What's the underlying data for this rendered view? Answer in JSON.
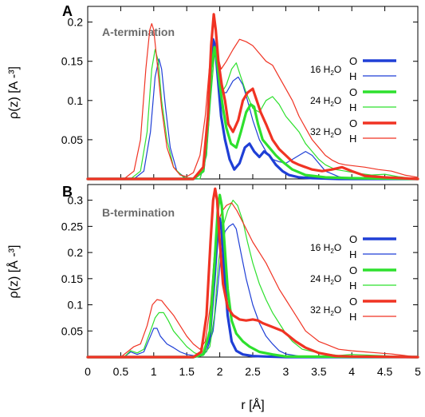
{
  "x_axis": {
    "label": "r [Å]",
    "ticks": [
      "0",
      "0.5",
      "1",
      "1.5",
      "2",
      "2.5",
      "3",
      "3.5",
      "4",
      "4.5",
      "5"
    ]
  },
  "colors": {
    "blue": "#1f3fd6",
    "green": "#2ee02e",
    "red": "#f03323"
  },
  "chart_data": [
    {
      "type": "line",
      "panel_letter": "A",
      "title": "A-termination",
      "ylabel": "ρ(z) [A -³]",
      "xlim": [
        0,
        5
      ],
      "ylim": [
        0,
        0.22
      ],
      "yticks": [
        "0.05",
        "0.1",
        "0.15",
        "0.2"
      ],
      "legend": [
        {
          "label_pre": "16 H",
          "label_sub": "2",
          "label_post": "O",
          "color": "blue"
        },
        {
          "label_pre": "24 H",
          "label_sub": "2",
          "label_post": "O",
          "color": "green"
        },
        {
          "label_pre": "32 H",
          "label_sub": "2",
          "label_post": "O",
          "color": "red"
        }
      ],
      "legend_markers": [
        "O",
        "H"
      ],
      "series": [
        {
          "group": "16 H2O",
          "atom": "O",
          "color": "blue",
          "width": 3.2,
          "x": [
            0,
            1.6,
            1.75,
            1.82,
            1.87,
            1.9,
            1.93,
            1.97,
            2.02,
            2.08,
            2.15,
            2.22,
            2.3,
            2.38,
            2.45,
            2.52,
            2.6,
            2.67,
            2.75,
            2.85,
            2.95,
            3.05,
            3.2,
            3.4,
            3.8,
            5
          ],
          "y": [
            0,
            0,
            0.01,
            0.07,
            0.14,
            0.178,
            0.17,
            0.13,
            0.08,
            0.05,
            0.025,
            0.012,
            0.02,
            0.04,
            0.045,
            0.035,
            0.028,
            0.035,
            0.03,
            0.018,
            0.01,
            0.005,
            0.002,
            0.001,
            0,
            0
          ]
        },
        {
          "group": "16 H2O",
          "atom": "H",
          "color": "blue",
          "width": 1.2,
          "x": [
            0,
            0.7,
            0.85,
            0.95,
            1.02,
            1.08,
            1.12,
            1.18,
            1.25,
            1.35,
            1.5,
            1.7,
            1.8,
            1.85,
            1.9,
            1.95,
            2.02,
            2.1,
            2.2,
            2.28,
            2.35,
            2.42,
            2.5,
            2.6,
            2.7,
            2.8,
            2.9,
            3.0,
            3.1,
            3.2,
            3.3,
            3.4,
            3.5,
            3.6,
            3.8,
            4.0,
            5
          ],
          "y": [
            0,
            0,
            0.01,
            0.06,
            0.13,
            0.153,
            0.14,
            0.09,
            0.04,
            0.01,
            0,
            0,
            0.03,
            0.1,
            0.175,
            0.16,
            0.11,
            0.11,
            0.125,
            0.13,
            0.12,
            0.1,
            0.075,
            0.05,
            0.035,
            0.025,
            0.022,
            0.02,
            0.025,
            0.03,
            0.035,
            0.03,
            0.02,
            0.01,
            0.003,
            0,
            0
          ]
        },
        {
          "group": "24 H2O",
          "atom": "O",
          "color": "green",
          "width": 3.2,
          "x": [
            0,
            1.6,
            1.75,
            1.82,
            1.87,
            1.92,
            1.96,
            2.0,
            2.05,
            2.1,
            2.17,
            2.25,
            2.32,
            2.4,
            2.47,
            2.52,
            2.58,
            2.65,
            2.75,
            2.85,
            2.95,
            3.1,
            3.3,
            3.6,
            4.0,
            5
          ],
          "y": [
            0,
            0,
            0.01,
            0.07,
            0.14,
            0.168,
            0.15,
            0.12,
            0.09,
            0.065,
            0.045,
            0.04,
            0.06,
            0.085,
            0.095,
            0.092,
            0.07,
            0.05,
            0.04,
            0.03,
            0.022,
            0.012,
            0.005,
            0.002,
            0.001,
            0
          ]
        },
        {
          "group": "24 H2O",
          "atom": "H",
          "color": "green",
          "width": 1.2,
          "x": [
            0,
            0.65,
            0.8,
            0.9,
            0.97,
            1.02,
            1.07,
            1.12,
            1.2,
            1.3,
            1.45,
            1.7,
            1.8,
            1.86,
            1.92,
            1.97,
            2.03,
            2.1,
            2.18,
            2.25,
            2.32,
            2.4,
            2.5,
            2.6,
            2.7,
            2.8,
            2.9,
            3.0,
            3.1,
            3.2,
            3.3,
            3.4,
            3.5,
            3.6,
            3.75,
            3.9,
            4.1,
            4.3,
            4.5,
            4.7,
            5
          ],
          "y": [
            0,
            0,
            0.01,
            0.06,
            0.14,
            0.165,
            0.15,
            0.1,
            0.05,
            0.015,
            0.002,
            0,
            0.03,
            0.1,
            0.16,
            0.14,
            0.11,
            0.12,
            0.14,
            0.148,
            0.13,
            0.11,
            0.09,
            0.085,
            0.1,
            0.105,
            0.095,
            0.08,
            0.07,
            0.06,
            0.045,
            0.035,
            0.025,
            0.018,
            0.012,
            0.01,
            0.007,
            0.005,
            0.006,
            0.003,
            0
          ]
        },
        {
          "group": "32 H2O",
          "atom": "O",
          "color": "red",
          "width": 3.2,
          "x": [
            0,
            1.6,
            1.75,
            1.82,
            1.87,
            1.91,
            1.94,
            1.98,
            2.03,
            2.08,
            2.13,
            2.2,
            2.28,
            2.35,
            2.42,
            2.5,
            2.56,
            2.62,
            2.7,
            2.8,
            2.9,
            3.0,
            3.1,
            3.2,
            3.3,
            3.4,
            3.55,
            3.7,
            3.85,
            4.0,
            4.2,
            4.5,
            5
          ],
          "y": [
            0,
            0,
            0.015,
            0.08,
            0.17,
            0.21,
            0.19,
            0.15,
            0.12,
            0.1,
            0.07,
            0.06,
            0.075,
            0.1,
            0.11,
            0.115,
            0.1,
            0.085,
            0.07,
            0.05,
            0.038,
            0.03,
            0.022,
            0.018,
            0.015,
            0.012,
            0.01,
            0.012,
            0.015,
            0.01,
            0.004,
            0.002,
            0
          ]
        },
        {
          "group": "32 H2O",
          "atom": "H",
          "color": "red",
          "width": 1.2,
          "x": [
            0,
            0.55,
            0.7,
            0.8,
            0.88,
            0.94,
            0.97,
            1.0,
            1.05,
            1.12,
            1.2,
            1.3,
            1.4,
            1.5,
            1.6,
            1.7,
            1.78,
            1.84,
            1.9,
            1.96,
            2.02,
            2.1,
            2.2,
            2.3,
            2.4,
            2.5,
            2.6,
            2.7,
            2.8,
            2.9,
            3.0,
            3.1,
            3.2,
            3.3,
            3.4,
            3.5,
            3.6,
            3.7,
            3.8,
            3.9,
            4.0,
            4.2,
            4.4,
            4.6,
            4.8,
            5
          ],
          "y": [
            0,
            0,
            0.01,
            0.05,
            0.14,
            0.19,
            0.198,
            0.19,
            0.15,
            0.09,
            0.04,
            0.015,
            0.005,
            0.003,
            0.008,
            0.03,
            0.08,
            0.14,
            0.17,
            0.16,
            0.14,
            0.15,
            0.165,
            0.178,
            0.175,
            0.17,
            0.16,
            0.15,
            0.145,
            0.13,
            0.115,
            0.1,
            0.08,
            0.065,
            0.05,
            0.04,
            0.03,
            0.024,
            0.02,
            0.018,
            0.017,
            0.015,
            0.012,
            0.01,
            0.005,
            0.002
          ]
        }
      ]
    },
    {
      "type": "line",
      "panel_letter": "B",
      "title": "B-termination",
      "ylabel": "ρ(z) [Å -³]",
      "xlim": [
        0,
        5
      ],
      "ylim": [
        0,
        0.33
      ],
      "yticks": [
        "0.05",
        "0.1",
        "0.15",
        "0.2",
        "0.25",
        "0.3"
      ],
      "legend": [
        {
          "label_pre": "16 H",
          "label_sub": "2",
          "label_post": "O",
          "color": "blue"
        },
        {
          "label_pre": "24 H",
          "label_sub": "2",
          "label_post": "O",
          "color": "green"
        },
        {
          "label_pre": "32 H",
          "label_sub": "2",
          "label_post": "O",
          "color": "red"
        }
      ],
      "legend_markers": [
        "O",
        "H"
      ],
      "series": [
        {
          "group": "16 H2O",
          "atom": "O",
          "color": "blue",
          "width": 3.2,
          "x": [
            0,
            1.6,
            1.75,
            1.85,
            1.92,
            1.97,
            2.0,
            2.03,
            2.07,
            2.12,
            2.18,
            2.25,
            2.35,
            2.5,
            2.7,
            3.0,
            5
          ],
          "y": [
            0,
            0,
            0.005,
            0.04,
            0.15,
            0.24,
            0.265,
            0.24,
            0.16,
            0.08,
            0.03,
            0.012,
            0.005,
            0.002,
            0.001,
            0,
            0
          ]
        },
        {
          "group": "16 H2O",
          "atom": "H",
          "color": "blue",
          "width": 1.2,
          "x": [
            0,
            0.55,
            0.65,
            0.75,
            0.85,
            0.95,
            1.0,
            1.05,
            1.1,
            1.2,
            1.3,
            1.4,
            1.5,
            1.65,
            1.8,
            1.9,
            1.96,
            2.02,
            2.08,
            2.14,
            2.2,
            2.25,
            2.32,
            2.4,
            2.5,
            2.6,
            2.7,
            2.8,
            2.9,
            3.0,
            3.2,
            5
          ],
          "y": [
            0,
            0,
            0.01,
            0.005,
            0.01,
            0.04,
            0.055,
            0.055,
            0.04,
            0.025,
            0.018,
            0.01,
            0.005,
            0.002,
            0.01,
            0.05,
            0.12,
            0.2,
            0.24,
            0.25,
            0.255,
            0.245,
            0.2,
            0.15,
            0.1,
            0.065,
            0.04,
            0.025,
            0.012,
            0.006,
            0.002,
            0
          ]
        },
        {
          "group": "24 H2O",
          "atom": "O",
          "color": "green",
          "width": 3.2,
          "x": [
            0,
            1.6,
            1.75,
            1.85,
            1.92,
            1.97,
            2.0,
            2.03,
            2.07,
            2.12,
            2.18,
            2.25,
            2.35,
            2.45,
            2.6,
            2.8,
            3.0,
            5
          ],
          "y": [
            0,
            0,
            0.005,
            0.05,
            0.18,
            0.28,
            0.31,
            0.29,
            0.22,
            0.13,
            0.07,
            0.045,
            0.03,
            0.02,
            0.01,
            0.005,
            0.001,
            0
          ]
        },
        {
          "group": "24 H2O",
          "atom": "H",
          "color": "green",
          "width": 1.2,
          "x": [
            0,
            0.55,
            0.65,
            0.75,
            0.85,
            0.95,
            1.02,
            1.08,
            1.15,
            1.22,
            1.3,
            1.4,
            1.5,
            1.62,
            1.75,
            1.85,
            1.92,
            1.98,
            2.05,
            2.12,
            2.2,
            2.27,
            2.35,
            2.42,
            2.5,
            2.6,
            2.7,
            2.8,
            2.9,
            3.0,
            3.1,
            3.25,
            3.5,
            3.8,
            4.0,
            5
          ],
          "y": [
            0,
            0,
            0.012,
            0.008,
            0.015,
            0.05,
            0.075,
            0.085,
            0.085,
            0.07,
            0.05,
            0.035,
            0.02,
            0.008,
            0.003,
            0.02,
            0.08,
            0.18,
            0.25,
            0.28,
            0.3,
            0.29,
            0.26,
            0.22,
            0.18,
            0.14,
            0.11,
            0.085,
            0.065,
            0.045,
            0.03,
            0.015,
            0.008,
            0.003,
            0.005,
            0
          ]
        },
        {
          "group": "32 H2O",
          "atom": "O",
          "color": "red",
          "width": 3.2,
          "x": [
            0,
            1.6,
            1.72,
            1.8,
            1.86,
            1.9,
            1.93,
            1.96,
            2.0,
            2.05,
            2.12,
            2.2,
            2.3,
            2.4,
            2.5,
            2.58,
            2.65,
            2.75,
            2.85,
            2.95,
            3.05,
            3.15,
            3.3,
            3.5,
            3.75,
            4.0,
            5
          ],
          "y": [
            0,
            0,
            0.01,
            0.08,
            0.22,
            0.3,
            0.322,
            0.3,
            0.22,
            0.14,
            0.095,
            0.08,
            0.072,
            0.07,
            0.072,
            0.07,
            0.065,
            0.06,
            0.055,
            0.05,
            0.04,
            0.03,
            0.018,
            0.008,
            0.002,
            0.001,
            0
          ]
        },
        {
          "group": "32 H2O",
          "atom": "H",
          "color": "red",
          "width": 1.2,
          "x": [
            0,
            0.5,
            0.6,
            0.7,
            0.8,
            0.9,
            0.98,
            1.05,
            1.12,
            1.2,
            1.3,
            1.4,
            1.5,
            1.6,
            1.7,
            1.78,
            1.86,
            1.92,
            1.98,
            2.04,
            2.1,
            2.18,
            2.26,
            2.34,
            2.42,
            2.5,
            2.6,
            2.7,
            2.8,
            2.9,
            3.0,
            3.1,
            3.2,
            3.3,
            3.4,
            3.5,
            3.6,
            3.7,
            3.8,
            4.0,
            4.2,
            4.4,
            4.6,
            4.8,
            5
          ],
          "y": [
            0,
            0,
            0.01,
            0.02,
            0.025,
            0.06,
            0.1,
            0.11,
            0.108,
            0.095,
            0.08,
            0.06,
            0.04,
            0.025,
            0.015,
            0.03,
            0.1,
            0.2,
            0.26,
            0.28,
            0.29,
            0.295,
            0.28,
            0.26,
            0.24,
            0.22,
            0.2,
            0.18,
            0.155,
            0.13,
            0.11,
            0.09,
            0.07,
            0.05,
            0.04,
            0.03,
            0.025,
            0.02,
            0.015,
            0.012,
            0.01,
            0.008,
            0.006,
            0.003,
            0
          ]
        }
      ]
    }
  ]
}
